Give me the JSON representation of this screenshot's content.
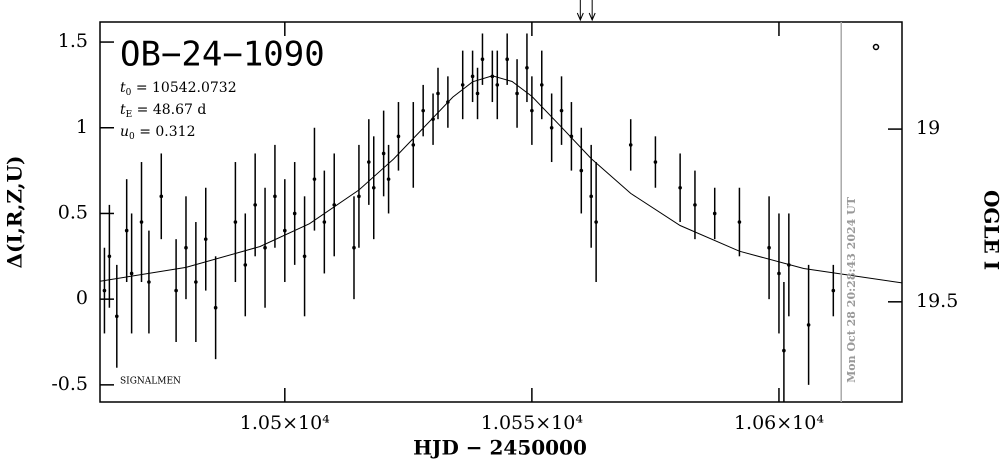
{
  "chart_data": {
    "type": "scatter",
    "title": "OB−24−1090",
    "x_label": "HJD − 2450000",
    "y_label": "Δ(I,R,Z,U)",
    "y2_label": "OGLE I",
    "annotations": [
      {
        "symbol": "t",
        "sub": "0",
        "text": " = 10542.0732"
      },
      {
        "symbol": "t",
        "sub": "E",
        "text": " = 48.67 d"
      },
      {
        "symbol": "u",
        "sub": "0",
        "text": " = 0.312"
      }
    ],
    "signature": "SIGNALMEN",
    "timestamp": "Mon Oct 28 20:28:43 2024 UT",
    "now_line": 10612.6,
    "arrows": [
      10559.8,
      10562.2
    ],
    "xlim": [
      10462.6,
      10624.9
    ],
    "ylim": [
      -0.6,
      1.617
    ],
    "y2lim": [
      18.69,
      19.79
    ],
    "xticks": [
      {
        "value": 10500,
        "label": "1.05×10⁴"
      },
      {
        "value": 10550,
        "label": "1.055×10⁴"
      },
      {
        "value": 10600,
        "label": "1.06×10⁴"
      }
    ],
    "yticks": [
      -0.5,
      0,
      0.5,
      1,
      1.5
    ],
    "y2ticks": [
      19,
      19.5
    ],
    "color": "#000000",
    "series": [
      {
        "x": [
          10463.5,
          10464.5,
          10466,
          10468,
          10469,
          10471,
          10472.5,
          10475,
          10478,
          10480,
          10482,
          10484,
          10486,
          10490,
          10492,
          10494,
          10496,
          10498,
          10500,
          10502,
          10504,
          10506,
          10508,
          10510,
          10514,
          10515,
          10517,
          10518,
          10520,
          10521,
          10523,
          10526,
          10528,
          10530,
          10531,
          10533,
          10536,
          10538,
          10539,
          10540,
          10542,
          10543,
          10545,
          10547,
          10549,
          10550,
          10552,
          10554,
          10556,
          10558,
          10560,
          10562,
          10563,
          10570,
          10575,
          10580,
          10583,
          10587,
          10592,
          10598,
          10600,
          10601,
          10602,
          10606,
          10611
        ],
        "values": [
          0.05,
          0.25,
          -0.1,
          0.4,
          0.15,
          0.45,
          0.1,
          0.6,
          0.05,
          0.3,
          0.1,
          0.35,
          -0.05,
          0.45,
          0.2,
          0.55,
          0.3,
          0.6,
          0.4,
          0.5,
          0.25,
          0.7,
          0.45,
          0.55,
          0.3,
          0.6,
          0.8,
          0.65,
          0.85,
          0.7,
          0.95,
          0.9,
          1.1,
          1.05,
          1.2,
          1.15,
          1.25,
          1.3,
          1.2,
          1.4,
          1.3,
          1.25,
          1.4,
          1.2,
          1.35,
          1.1,
          1.25,
          1.0,
          1.1,
          0.95,
          0.75,
          0.6,
          0.45,
          0.9,
          0.8,
          0.65,
          0.55,
          0.5,
          0.45,
          0.3,
          0.15,
          -0.3,
          0.2,
          -0.15,
          0.05
        ],
        "errors": [
          0.25,
          0.3,
          0.3,
          0.3,
          0.35,
          0.35,
          0.3,
          0.25,
          0.3,
          0.3,
          0.35,
          0.3,
          0.3,
          0.35,
          0.3,
          0.3,
          0.35,
          0.3,
          0.3,
          0.3,
          0.35,
          0.3,
          0.3,
          0.3,
          0.3,
          0.3,
          0.25,
          0.3,
          0.25,
          0.2,
          0.2,
          0.25,
          0.15,
          0.15,
          0.15,
          0.15,
          0.2,
          0.15,
          0.15,
          0.15,
          0.15,
          0.2,
          0.15,
          0.2,
          0.2,
          0.2,
          0.2,
          0.2,
          0.2,
          0.2,
          0.25,
          0.3,
          0.35,
          0.15,
          0.15,
          0.2,
          0.2,
          0.15,
          0.2,
          0.3,
          0.35,
          0.4,
          0.3,
          0.35,
          0.15
        ]
      }
    ],
    "model": {
      "x": [
        10462.6,
        10480,
        10495,
        10505,
        10515,
        10522,
        10528,
        10534,
        10538,
        10542,
        10546,
        10550,
        10556,
        10562,
        10570,
        10580,
        10592,
        10605,
        10624.9
      ],
      "values": [
        0.105,
        0.185,
        0.307,
        0.44,
        0.637,
        0.817,
        0.998,
        1.179,
        1.268,
        1.303,
        1.27,
        1.183,
        1.003,
        0.82,
        0.617,
        0.43,
        0.28,
        0.179,
        0.095
      ]
    }
  }
}
